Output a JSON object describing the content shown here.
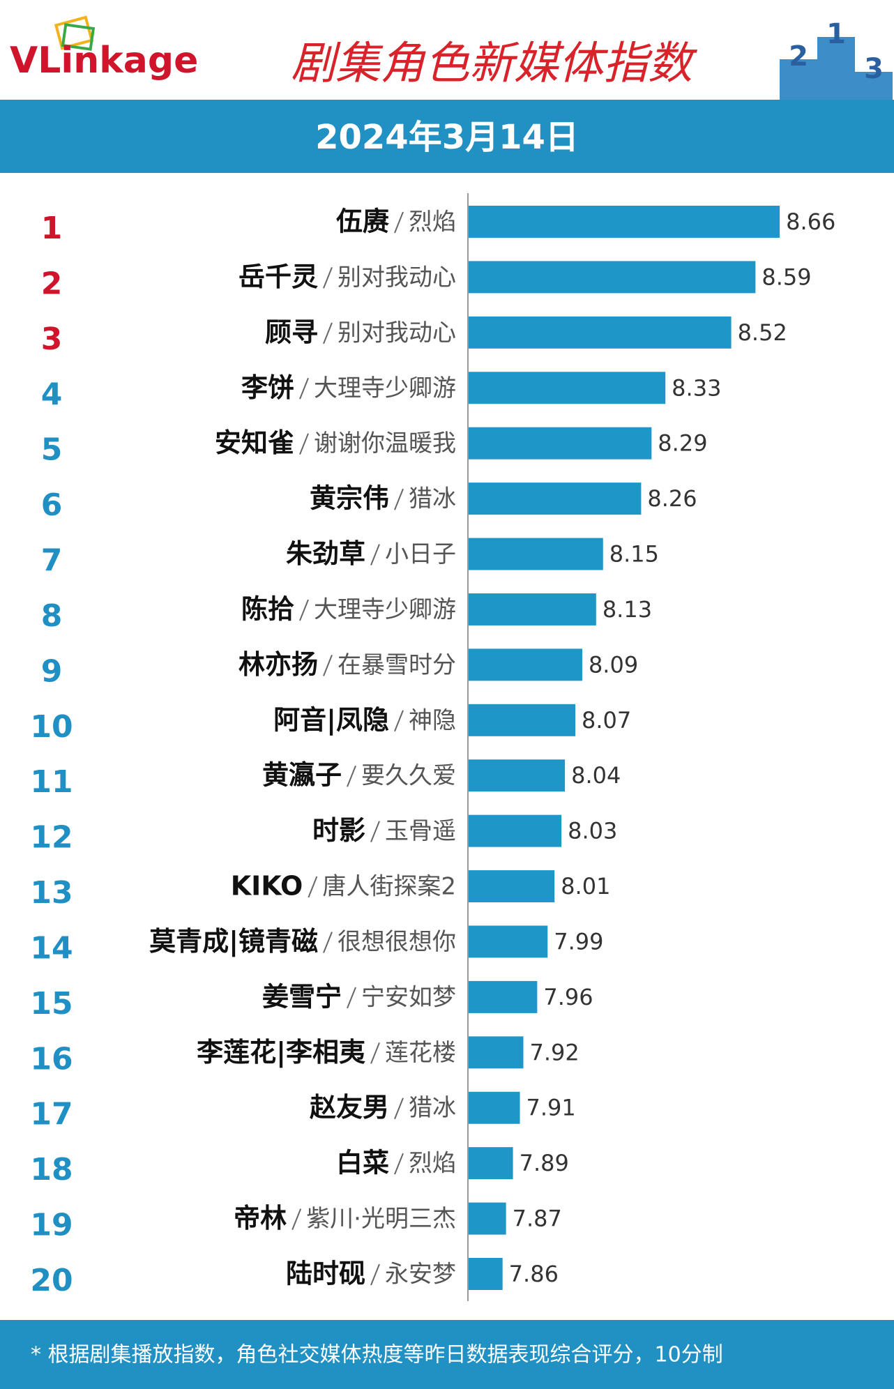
{
  "logo": "VLinkage",
  "podium": [
    2,
    1,
    3
  ],
  "chart_data": {
    "type": "hbar",
    "title": "剧集角色新媒体指数",
    "subtitle": "2024年3月14日",
    "ranks": [
      1,
      2,
      3,
      4,
      5,
      6,
      7,
      8,
      9,
      10,
      11,
      12,
      13,
      14,
      15,
      16,
      17,
      18,
      19,
      20
    ],
    "categories": [
      "伍赓",
      "岳千灵",
      "顾寻",
      "李饼",
      "安知雀",
      "黄宗伟",
      "朱劲草",
      "陈拾",
      "林亦扬",
      "阿音|凤隐",
      "黄瀛子",
      "时影",
      "KIKO",
      "莫青成|镜青磁",
      "姜雪宁",
      "李莲花|李相夷",
      "赵友男",
      "白菜",
      "帝林",
      "陆时砚"
    ],
    "shows": [
      "烈焰",
      "别对我动心",
      "别对我动心",
      "大理寺少卿游",
      "谢谢你温暖我",
      "猎冰",
      "小日子",
      "大理寺少卿游",
      "在暴雪时分",
      "神隐",
      "要久久爱",
      "玉骨遥",
      "唐人街探案2",
      "很想很想你",
      "宁安如梦",
      "莲花楼",
      "猎冰",
      "烈焰",
      "紫川·光明三杰",
      "永安梦"
    ],
    "values": [
      8.66,
      8.59,
      8.52,
      8.33,
      8.29,
      8.26,
      8.15,
      8.13,
      8.09,
      8.07,
      8.04,
      8.03,
      8.01,
      7.99,
      7.96,
      7.92,
      7.91,
      7.89,
      7.87,
      7.86
    ],
    "xlim": [
      7.76,
      8.7
    ],
    "color": "#1e96c8",
    "top_rank_color": "#d0142c",
    "rank_color": "#1f8fc4",
    "top_count": 3,
    "footnote": "* 根据剧集播放指数，角色社交媒体热度等昨日数据表现综合评分，10分制"
  }
}
